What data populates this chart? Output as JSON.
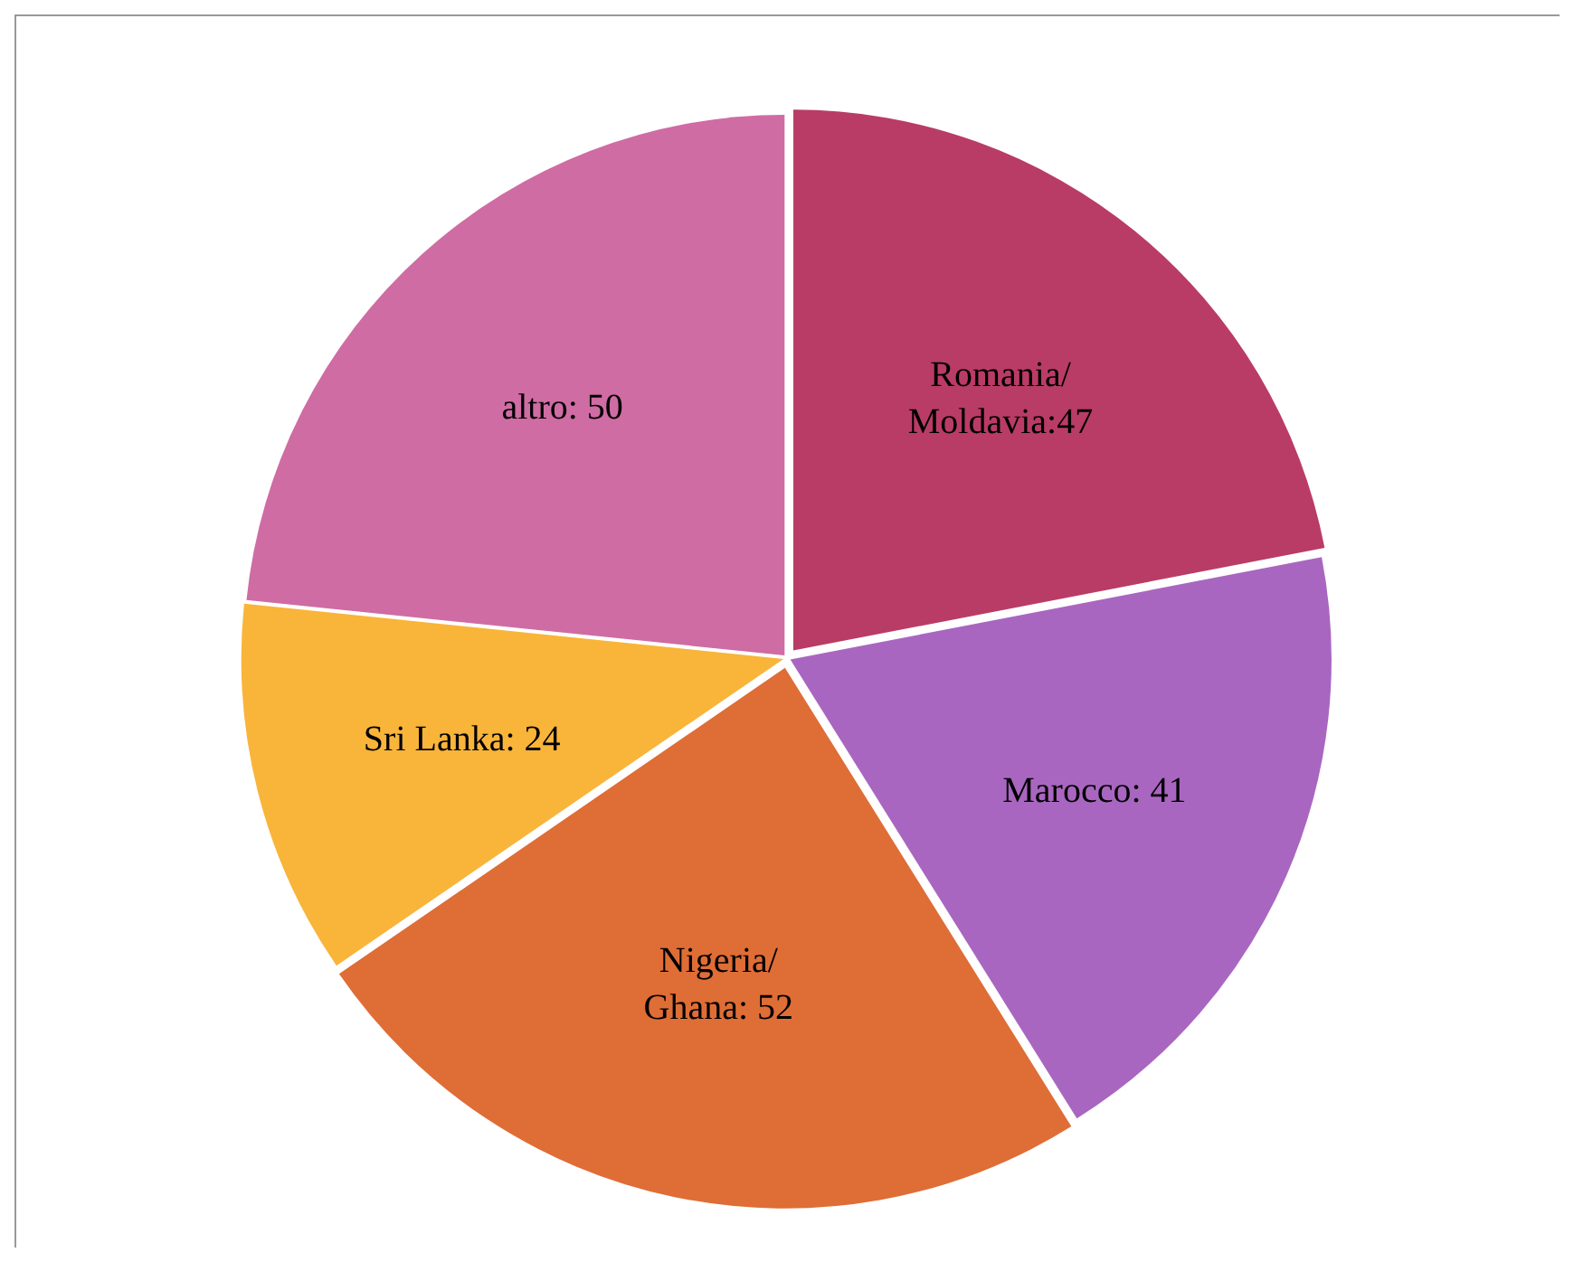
{
  "chart_data": {
    "type": "pie",
    "categories": [
      "Romania/ Moldavia:47",
      "Marocco: 41",
      "Nigeria/ Ghana: 52",
      "Sri Lanka: 24",
      "altro: 50"
    ],
    "values": [
      47,
      41,
      52,
      24,
      50
    ],
    "colors": [
      "#b93c66",
      "#a966c0",
      "#df6d36",
      "#f9b43a",
      "#cf6ca3"
    ],
    "legend": false
  }
}
